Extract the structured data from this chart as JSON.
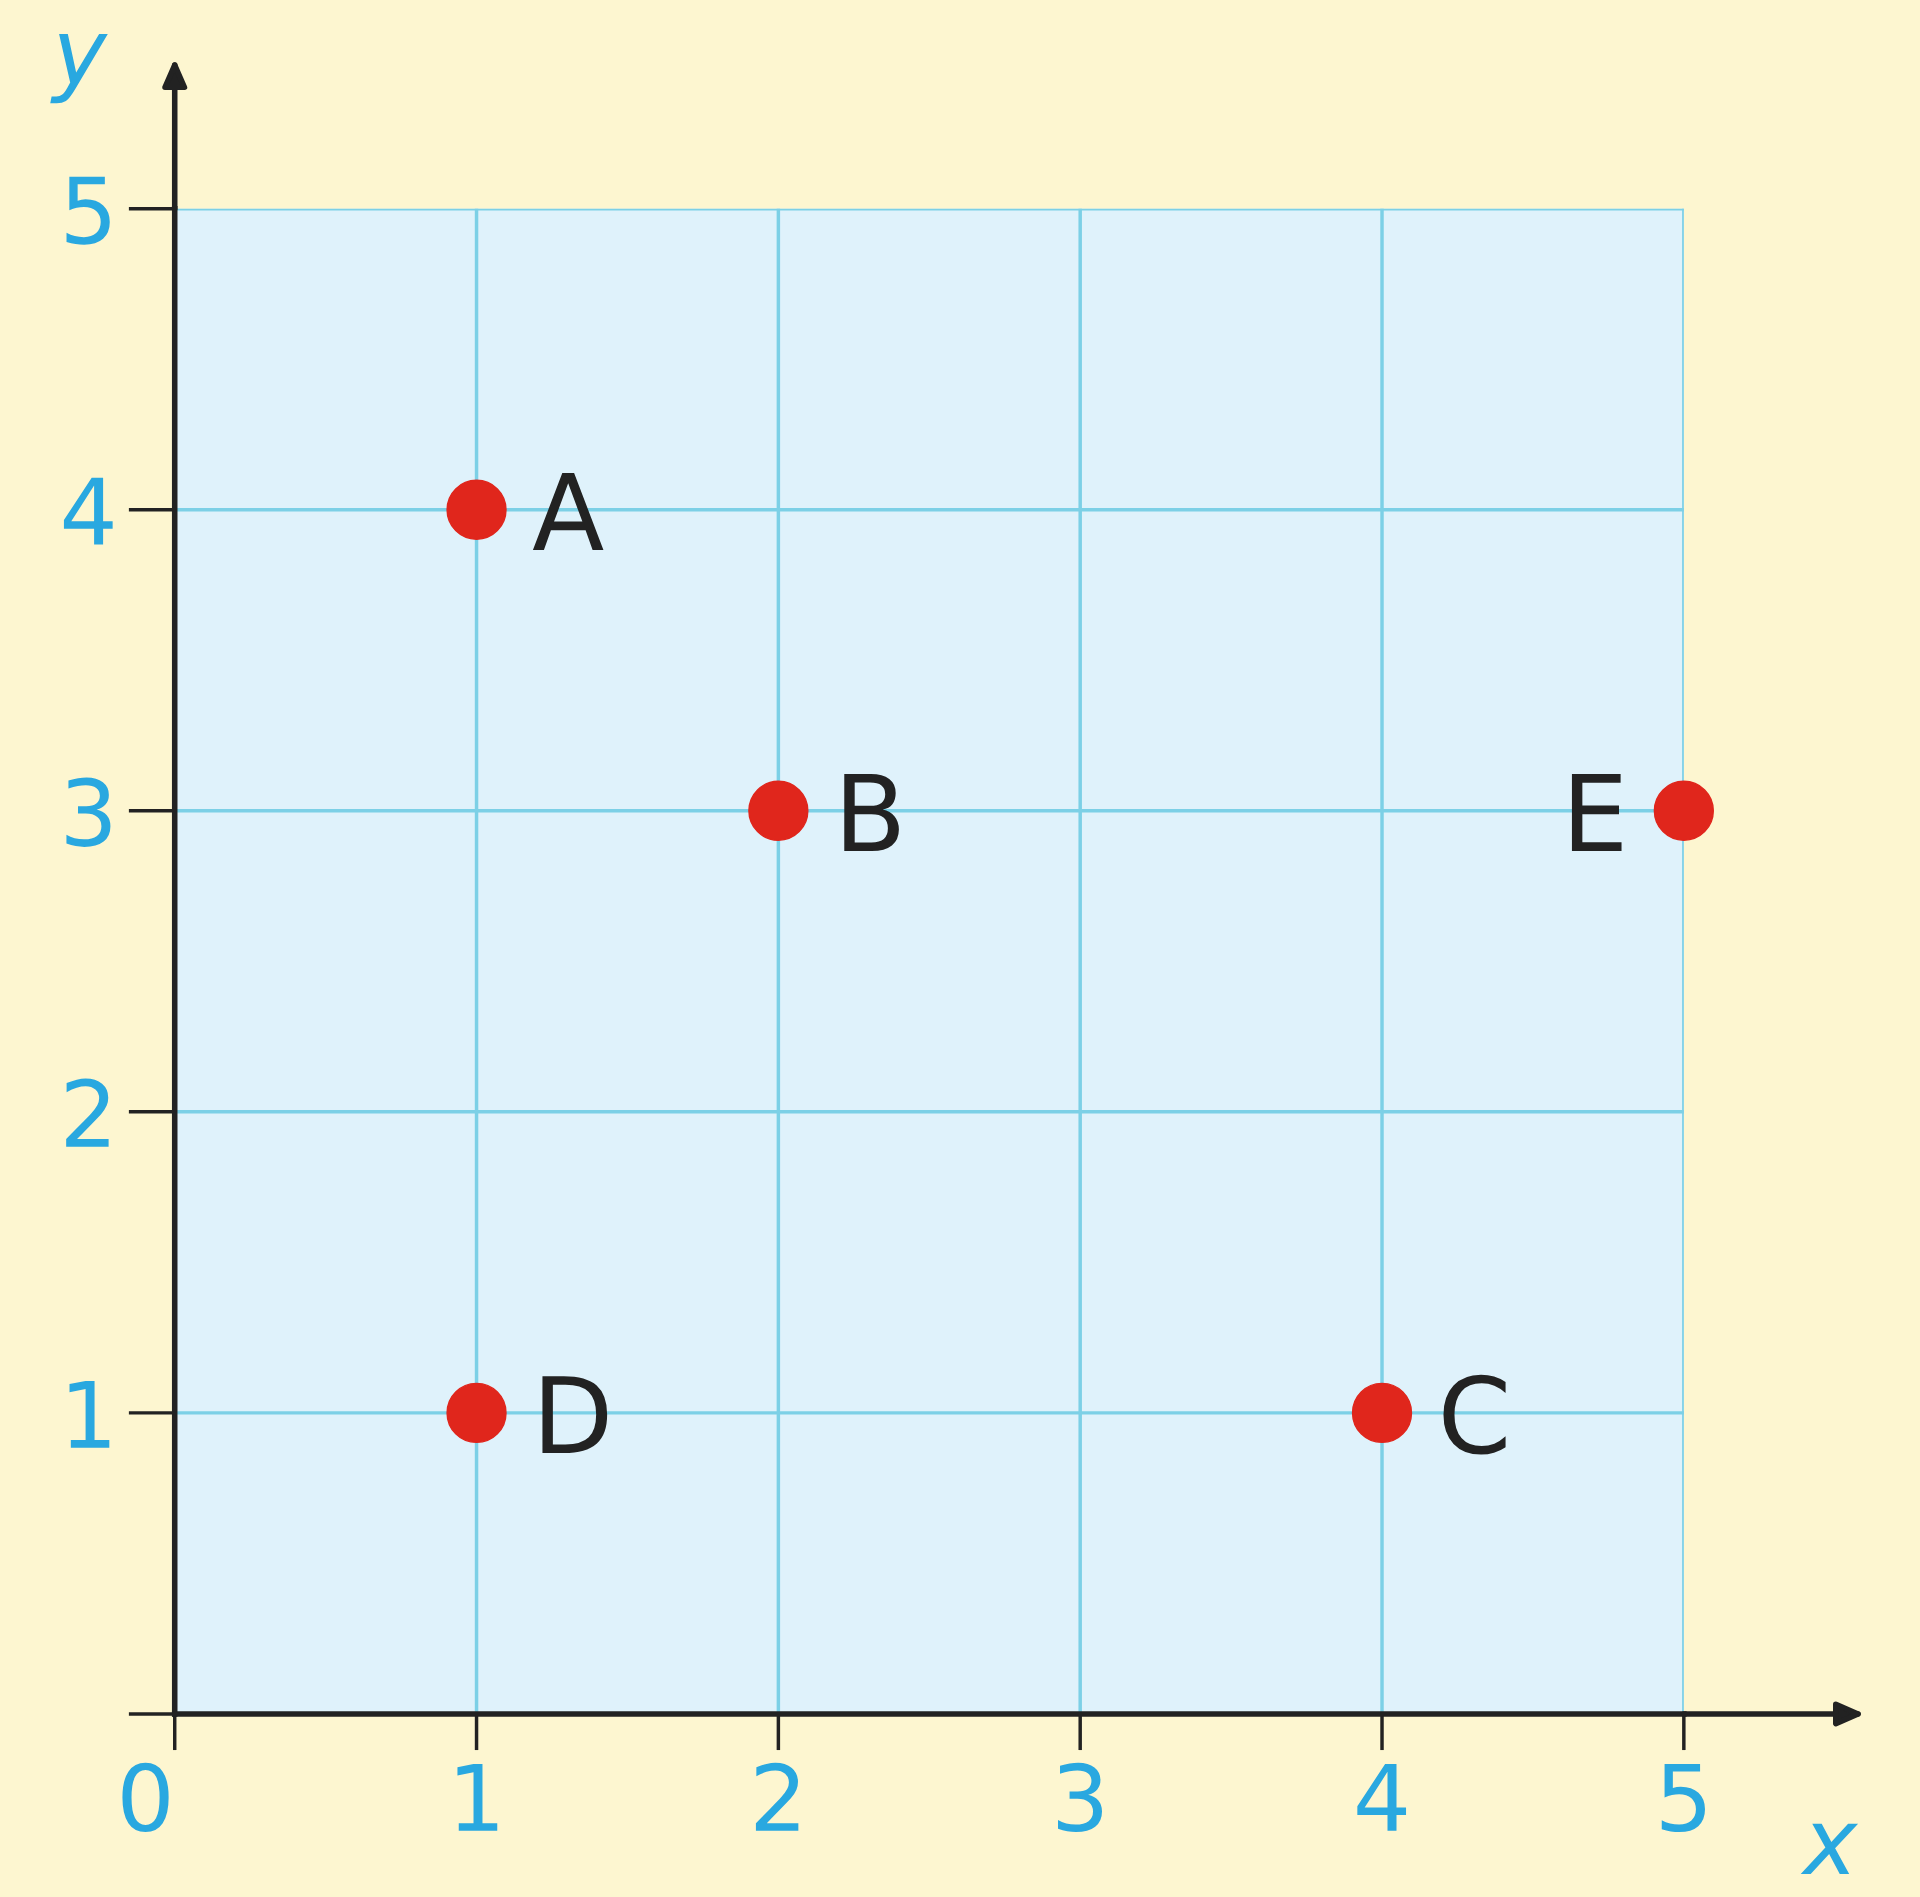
{
  "chart_data": {
    "type": "scatter",
    "xlabel": "x",
    "ylabel": "y",
    "series": [
      {
        "color": "#e0261c",
        "x": [
          1,
          2,
          4,
          1,
          5
        ],
        "values": [
          4,
          3,
          1,
          1,
          3
        ]
      }
    ],
    "annotations": [
      {
        "text": "A",
        "x": 1,
        "y": 4
      },
      {
        "text": "B",
        "x": 2,
        "y": 3
      },
      {
        "text": "C",
        "x": 4,
        "y": 1
      },
      {
        "text": "D",
        "x": 1,
        "y": 1
      },
      {
        "text": "E",
        "x": 5,
        "y": 3
      }
    ],
    "xlim": [
      0,
      5
    ],
    "ylim": [
      0,
      5
    ],
    "xticks": [
      {
        "value": 0,
        "label": "0"
      },
      1,
      2,
      3,
      4,
      5
    ],
    "yticks": [
      {
        "value": 0,
        "label": null
      },
      1,
      2,
      3,
      4,
      5
    ],
    "grid": true,
    "marker": "circle",
    "legend": false
  }
}
